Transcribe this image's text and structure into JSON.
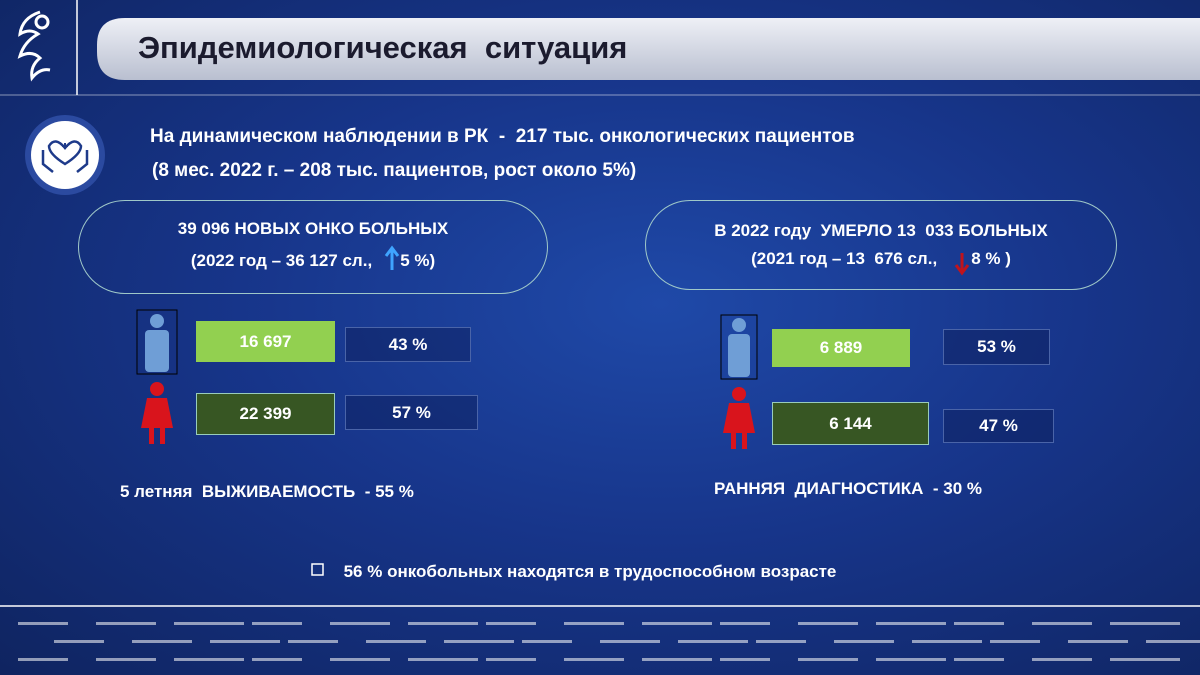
{
  "header": {
    "title": "Эпидемиологическая  ситуация"
  },
  "summary": {
    "line1": "На динамическом наблюдении в РК  -  217 тыс. онкологических пациентов",
    "line2": "(8 мес. 2022 г. – 208 тыс. пациентов, рост около 5%)"
  },
  "left": {
    "headline": "39 096 НОВЫХ ОНКО БОЛЬНЫХ",
    "compare": "(2022 год – 36 127 сл.,",
    "change": "5 %)",
    "male": {
      "count": "16 697",
      "share": "43 %"
    },
    "female": {
      "count": "22 399",
      "share": "57 %"
    },
    "footer": "5 летняя  ВЫЖИВАЕМОСТЬ  - 55 %"
  },
  "right": {
    "headline": "В 2022 году  УМЕРЛО 13  033 БОЛЬНЫХ",
    "compare": "(2021 год – 13  676 сл.,",
    "change": "8 % )",
    "male": {
      "count": "6 889",
      "share": "53 %"
    },
    "female": {
      "count": "6 144",
      "share": "47 %"
    },
    "footer": "РАННЯЯ  ДИАГНОСТИКА  - 30 %"
  },
  "note": "56 % онкобольных находятся в трудоспособном возрасте"
}
